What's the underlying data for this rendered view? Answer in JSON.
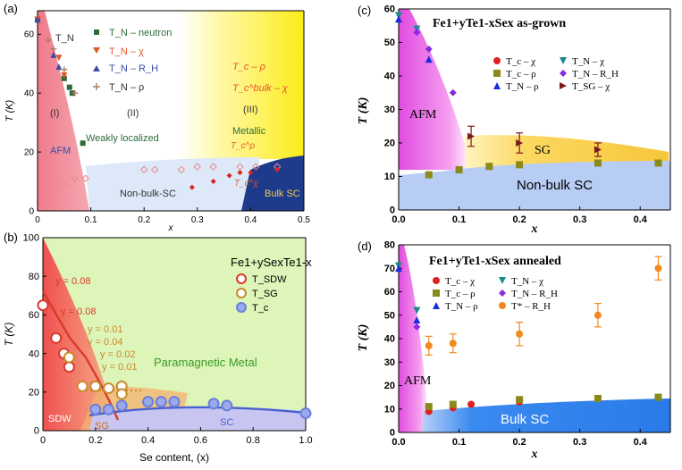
{
  "chart_data": [
    {
      "id": "a",
      "panel_label": "(a)",
      "type": "scatter",
      "xlabel": "x",
      "ylabel": "T (K)",
      "xlim": [
        0,
        0.5
      ],
      "ylim": [
        0,
        68
      ],
      "xticks": [
        "0",
        "0.1",
        "0.2",
        "0.3",
        "0.4",
        "0.5"
      ],
      "xtick_values": [
        0,
        0.1,
        0.2,
        0.3,
        0.4,
        0.5
      ],
      "yticks": [
        "0",
        "20",
        "40",
        "60"
      ],
      "ytick_values": [
        0,
        20,
        40,
        60
      ],
      "legend": [
        {
          "label": "T_N – neutron",
          "marker": "square",
          "color": "#2e6b3a"
        },
        {
          "label": "T_N – χ",
          "marker": "triangle-down",
          "color": "#e2572a"
        },
        {
          "label": "T_N – R_H",
          "marker": "triangle-up",
          "color": "#3a4ea8"
        },
        {
          "label": "T_N – ρ",
          "marker": "plus",
          "color": "#b07a5a"
        }
      ],
      "region_labels": {
        "tn": "T_N",
        "i": "(I)",
        "ii": "(II)",
        "iii": "(III)",
        "afm": "AFM",
        "weakly": "Weakly localized",
        "metallic": "Metallic",
        "nonbulk": "Non-bulk-SC",
        "bulksc": "Bulk SC",
        "tc_rho": "T_c – ρ",
        "tc_bulk_chi": "T_c^bulk – χ",
        "tc_top": "T_c^ρ",
        "tc_bottom": "T_c^χ"
      },
      "series": [
        {
          "name": "T_N neutron",
          "points": [
            [
              0.0,
              65
            ],
            [
              0.05,
              45
            ],
            [
              0.06,
              42
            ],
            [
              0.065,
              40
            ],
            [
              0.085,
              23
            ]
          ]
        },
        {
          "name": "T_N chi",
          "points": [
            [
              0.0,
              65
            ],
            [
              0.04,
              52
            ],
            [
              0.05,
              46
            ]
          ]
        },
        {
          "name": "T_N R_H",
          "points": [
            [
              0.0,
              65
            ],
            [
              0.03,
              53
            ],
            [
              0.04,
              49
            ]
          ]
        },
        {
          "name": "T_N rho",
          "points": [
            [
              0.02,
              58
            ],
            [
              0.03,
              55
            ],
            [
              0.05,
              48
            ],
            [
              0.07,
              40
            ]
          ]
        },
        {
          "name": "Tc rho",
          "points": [
            [
              0.02,
              5
            ],
            [
              0.04,
              7
            ],
            [
              0.05,
              9
            ],
            [
              0.07,
              11
            ],
            [
              0.09,
              11
            ],
            [
              0.2,
              14
            ],
            [
              0.22,
              14
            ],
            [
              0.27,
              14
            ],
            [
              0.3,
              15
            ],
            [
              0.33,
              15
            ],
            [
              0.38,
              15
            ],
            [
              0.41,
              15
            ],
            [
              0.45,
              15
            ]
          ]
        },
        {
          "name": "Tc bulk chi",
          "points": [
            [
              0.29,
              8
            ],
            [
              0.33,
              10
            ],
            [
              0.36,
              12
            ],
            [
              0.38,
              13
            ],
            [
              0.4,
              13
            ],
            [
              0.45,
              14
            ]
          ]
        }
      ]
    },
    {
      "id": "b",
      "panel_label": "(b)",
      "type": "scatter",
      "title": "Fe1+ySexTe1-x",
      "xlabel": "Se content, (x)",
      "ylabel": "T (K)",
      "xlim": [
        0,
        1.0
      ],
      "ylim": [
        0,
        100
      ],
      "xticks": [
        "0",
        "0.2",
        "0.4",
        "0.6",
        "0.8",
        "1.0"
      ],
      "xtick_values": [
        0,
        0.2,
        0.4,
        0.6,
        0.8,
        1.0
      ],
      "yticks": [
        "0",
        "20",
        "40",
        "60",
        "80",
        "100"
      ],
      "ytick_values": [
        0,
        20,
        40,
        60,
        80,
        100
      ],
      "legend": [
        {
          "label": "T_SDW",
          "color": "#d93a2b"
        },
        {
          "label": "T_SG",
          "color": "#c98a2a"
        },
        {
          "label": "T_c",
          "color": "#6b7fd8"
        }
      ],
      "region_labels": {
        "paramagnetic": "Paramagnetic Metal",
        "sdw": "SDW",
        "sg": "SG",
        "sc": "SC"
      },
      "y_annotations": [
        "y = 0.08",
        "y = 0.08",
        "y = 0.01",
        "y = 0.04",
        "y = 0.02",
        "y = 0.01"
      ],
      "series": [
        {
          "name": "T_SDW",
          "x": [
            0.0,
            0.05,
            0.08,
            0.1
          ],
          "y": [
            65,
            48,
            40,
            33
          ]
        },
        {
          "name": "T_SG",
          "x": [
            0.1,
            0.15,
            0.2,
            0.25,
            0.3,
            0.3
          ],
          "y": [
            38,
            23,
            23,
            22,
            23,
            19
          ]
        },
        {
          "name": "T_c",
          "x": [
            0.2,
            0.25,
            0.3,
            0.4,
            0.45,
            0.5,
            0.65,
            0.7,
            1.0
          ],
          "y": [
            11,
            11,
            13,
            15,
            15,
            15,
            14,
            13,
            9
          ]
        }
      ]
    },
    {
      "id": "c",
      "panel_label": "(c)",
      "type": "scatter",
      "title": "Fe1+yTe1-xSex as-grown",
      "xlabel": "x",
      "ylabel": "T (K)",
      "xlim": [
        0,
        0.45
      ],
      "ylim": [
        0,
        60
      ],
      "xticks": [
        "0.0",
        "0.1",
        "0.2",
        "0.3",
        "0.4"
      ],
      "xtick_values": [
        0,
        0.1,
        0.2,
        0.3,
        0.4
      ],
      "yticks": [
        "0",
        "10",
        "20",
        "30",
        "40",
        "50",
        "60"
      ],
      "ytick_values": [
        0,
        10,
        20,
        30,
        40,
        50,
        60
      ],
      "legend": [
        {
          "label": "T_c – χ",
          "color": "#e02020",
          "marker": "circle"
        },
        {
          "label": "T_N – χ",
          "color": "#1a8a8a",
          "marker": "triangle-down"
        },
        {
          "label": "T_c – ρ",
          "color": "#8a8a1a",
          "marker": "square"
        },
        {
          "label": "T_N – R_H",
          "color": "#8a2be2",
          "marker": "diamond"
        },
        {
          "label": "T_N – ρ",
          "color": "#1a2ee0",
          "marker": "triangle-up"
        },
        {
          "label": "T_SG – χ",
          "color": "#7a1a1a",
          "marker": "triangle-right"
        }
      ],
      "region_labels": {
        "afm": "AFM",
        "sg": "SG",
        "nonbulk": "Non-bulk SC"
      },
      "series": [
        {
          "name": "T_N chi",
          "x": [
            0.0,
            0.03
          ],
          "y": [
            58,
            54
          ]
        },
        {
          "name": "T_N R_H",
          "x": [
            0.03,
            0.05,
            0.09
          ],
          "y": [
            53,
            48,
            35
          ]
        },
        {
          "name": "T_N rho",
          "x": [
            0.0,
            0.05
          ],
          "y": [
            57,
            45
          ]
        },
        {
          "name": "T_c rho",
          "x": [
            0.05,
            0.1,
            0.15,
            0.2,
            0.33,
            0.43
          ],
          "y": [
            10.5,
            12,
            13,
            13.5,
            14,
            14
          ]
        },
        {
          "name": "T_SG chi",
          "x": [
            0.12,
            0.2,
            0.33
          ],
          "y": [
            22,
            20,
            18
          ],
          "yerr": [
            3,
            3,
            2
          ]
        }
      ]
    },
    {
      "id": "d",
      "panel_label": "(d)",
      "type": "scatter",
      "title": "Fe1+yTe1-xSex annealed",
      "xlabel": "x",
      "ylabel": "T (K)",
      "xlim": [
        0,
        0.45
      ],
      "ylim": [
        0,
        80
      ],
      "xticks": [
        "0.0",
        "0.1",
        "0.2",
        "0.3",
        "0.4"
      ],
      "xtick_values": [
        0,
        0.1,
        0.2,
        0.3,
        0.4
      ],
      "yticks": [
        "0",
        "10",
        "20",
        "30",
        "40",
        "50",
        "60",
        "70",
        "80"
      ],
      "ytick_values": [
        0,
        10,
        20,
        30,
        40,
        50,
        60,
        70,
        80
      ],
      "legend": [
        {
          "label": "T_c – χ",
          "color": "#e02020",
          "marker": "circle"
        },
        {
          "label": "T_N – χ",
          "color": "#1a8a8a",
          "marker": "triangle-down"
        },
        {
          "label": "T_c – ρ",
          "color": "#8a8a1a",
          "marker": "square"
        },
        {
          "label": "T_N – R_H",
          "color": "#8a2be2",
          "marker": "diamond"
        },
        {
          "label": "T_N – ρ",
          "color": "#1a2ee0",
          "marker": "triangle-up"
        },
        {
          "label": "T* – R_H",
          "color": "#f08a20",
          "marker": "circle"
        }
      ],
      "region_labels": {
        "afm": "AFM",
        "bulksc": "Bulk SC"
      },
      "series": [
        {
          "name": "T_N chi",
          "x": [
            0.0,
            0.03
          ],
          "y": [
            71,
            52
          ]
        },
        {
          "name": "T_N R_H",
          "x": [
            0.03
          ],
          "y": [
            45
          ]
        },
        {
          "name": "T_N rho",
          "x": [
            0.0,
            0.03
          ],
          "y": [
            70,
            48
          ]
        },
        {
          "name": "T_c chi",
          "x": [
            0.05,
            0.09,
            0.12,
            0.2
          ],
          "y": [
            9,
            10.5,
            12,
            13
          ]
        },
        {
          "name": "T_c rho",
          "x": [
            0.05,
            0.09,
            0.2,
            0.33,
            0.43
          ],
          "y": [
            11,
            12,
            14,
            14.5,
            15
          ]
        },
        {
          "name": "T* R_H",
          "x": [
            0.05,
            0.09,
            0.2,
            0.33,
            0.43
          ],
          "y": [
            37,
            38,
            42,
            50,
            70
          ],
          "yerr": [
            4,
            4,
            5,
            5,
            5
          ]
        }
      ]
    }
  ]
}
